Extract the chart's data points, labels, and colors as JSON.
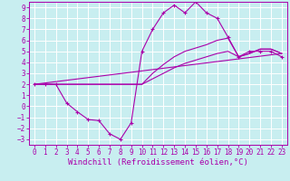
{
  "title": "",
  "xlabel": "Windchill (Refroidissement éolien,°C)",
  "ylabel": "",
  "background_color": "#c8eef0",
  "grid_color": "#ffffff",
  "line_color": "#aa00aa",
  "xlim": [
    -0.5,
    23.5
  ],
  "ylim": [
    -3.5,
    9.5
  ],
  "xticks": [
    0,
    1,
    2,
    3,
    4,
    5,
    6,
    7,
    8,
    9,
    10,
    11,
    12,
    13,
    14,
    15,
    16,
    17,
    18,
    19,
    20,
    21,
    22,
    23
  ],
  "yticks": [
    -3,
    -2,
    -1,
    0,
    1,
    2,
    3,
    4,
    5,
    6,
    7,
    8,
    9
  ],
  "series_zigzag": {
    "x": [
      0,
      1,
      2,
      3,
      4,
      5,
      6,
      7,
      8,
      9,
      10,
      11,
      12,
      13,
      14,
      15,
      16,
      17,
      18,
      19,
      20,
      21,
      22,
      23
    ],
    "y": [
      2,
      2,
      2,
      0.3,
      -0.5,
      -1.2,
      -1.3,
      -2.5,
      -3.0,
      -1.5,
      5.0,
      7.0,
      8.5,
      9.2,
      8.5,
      9.5,
      8.5,
      8.0,
      6.3,
      4.5,
      5.0,
      5.0,
      5.0,
      4.5
    ]
  },
  "series_upper": {
    "x": [
      0,
      10,
      11,
      12,
      13,
      14,
      15,
      16,
      17,
      18,
      19,
      20,
      21,
      22,
      23
    ],
    "y": [
      2,
      2,
      3.0,
      3.8,
      4.5,
      5.0,
      5.3,
      5.6,
      6.0,
      6.2,
      4.5,
      4.8,
      5.2,
      5.2,
      4.8
    ]
  },
  "series_lower": {
    "x": [
      0,
      10,
      11,
      12,
      13,
      14,
      15,
      16,
      17,
      18,
      19,
      20,
      21,
      22,
      23
    ],
    "y": [
      2,
      2,
      2.5,
      3.0,
      3.5,
      3.9,
      4.2,
      4.5,
      4.8,
      5.0,
      4.5,
      4.8,
      5.2,
      5.2,
      4.8
    ]
  },
  "series_diag": {
    "x": [
      0,
      23
    ],
    "y": [
      2,
      4.8
    ]
  },
  "xlabel_fontsize": 6.5,
  "tick_fontsize": 5.5
}
